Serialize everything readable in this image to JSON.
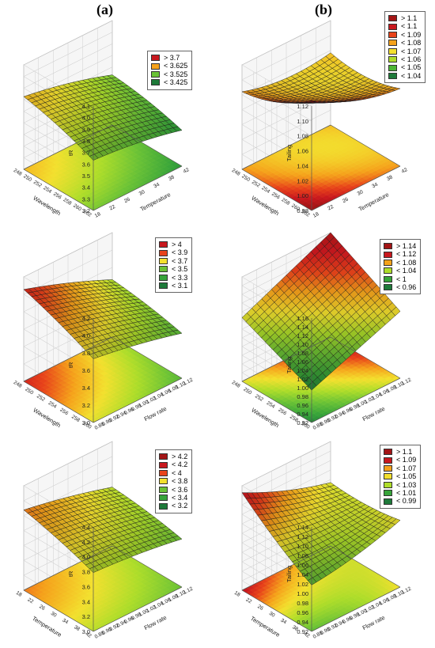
{
  "labels": {
    "col_a": "(a)",
    "col_b": "(b)"
  },
  "chart_data": [
    {
      "id": "a1",
      "type": "surface3d",
      "zlabel": "tR",
      "xlabel": "Temperature",
      "ylabel": "Wavelength",
      "z_ticks": [
        "3.2",
        "3.3",
        "3.4",
        "3.5",
        "3.6",
        "3.7",
        "3.8",
        "3.9",
        "4.0",
        "4.1"
      ],
      "z_range": [
        3.2,
        4.1
      ],
      "x_ticks": [
        "18",
        "22",
        "26",
        "30",
        "34",
        "38",
        "42"
      ],
      "y_ticks": [
        "248",
        "250",
        "252",
        "254",
        "256",
        "258",
        "260",
        "262"
      ],
      "corner_z": {
        "x0y0": 3.45,
        "x1y0": 3.28,
        "x0y1": 3.72,
        "x1y1": 3.45
      },
      "curvature": 0.03,
      "legend": [
        {
          "label": "> 3.7",
          "color": "#c8181e"
        },
        {
          "label": "< 3.625",
          "color": "#f5a21b"
        },
        {
          "label": "< 3.525",
          "color": "#6ac236"
        },
        {
          "label": "< 3.425",
          "color": "#1e7a3a"
        }
      ]
    },
    {
      "id": "b1",
      "type": "surface3d",
      "zlabel": "Tailing",
      "xlabel": "Temperature",
      "ylabel": "Wavelength",
      "z_ticks": [
        "0.98",
        "1.00",
        "1.02",
        "1.04",
        "1.06",
        "1.08",
        "1.10",
        "1.12"
      ],
      "z_range": [
        0.98,
        1.12
      ],
      "x_ticks": [
        "18",
        "22",
        "26",
        "30",
        "34",
        "38",
        "42"
      ],
      "y_ticks": [
        "248",
        "250",
        "252",
        "254",
        "256",
        "258",
        "260",
        "262"
      ],
      "corner_z": {
        "x0y0": 1.13,
        "x1y0": 1.07,
        "x0y1": 1.07,
        "x1y1": 1.06
      },
      "curvature": -0.08,
      "legend": [
        {
          "label": "> 1.1",
          "color": "#a31516"
        },
        {
          "label": "< 1.1",
          "color": "#c8181e"
        },
        {
          "label": "< 1.09",
          "color": "#e8431a"
        },
        {
          "label": "< 1.08",
          "color": "#f5a21b"
        },
        {
          "label": "< 1.07",
          "color": "#f3e02e"
        },
        {
          "label": "< 1.06",
          "color": "#aedd2a"
        },
        {
          "label": "< 1.05",
          "color": "#4cb534"
        },
        {
          "label": "< 1.04",
          "color": "#1e7a3a"
        }
      ]
    },
    {
      "id": "a2",
      "type": "surface3d",
      "zlabel": "tR",
      "xlabel": "Flow rate",
      "ylabel": "Wavelength",
      "z_ticks": [
        "3.0",
        "3.2",
        "3.4",
        "3.6",
        "3.8",
        "4.0",
        "4.2"
      ],
      "z_range": [
        3.0,
        4.2
      ],
      "x_ticks": [
        "0.88",
        "0.90",
        "0.92",
        "0.94",
        "0.96",
        "0.98",
        "1.00",
        "1.02",
        "1.04",
        "1.06",
        "1.08",
        "1.10",
        "1.12"
      ],
      "y_ticks": [
        "248",
        "250",
        "252",
        "254",
        "256",
        "258",
        "260"
      ],
      "corner_z": {
        "x0y0": 3.55,
        "x1y0": 3.25,
        "x0y1": 4.0,
        "x1y1": 3.45
      },
      "curvature": 0.02,
      "legend": [
        {
          "label": "> 4",
          "color": "#c8181e"
        },
        {
          "label": "< 3.9",
          "color": "#e8431a"
        },
        {
          "label": "< 3.7",
          "color": "#f3e02e"
        },
        {
          "label": "< 3.5",
          "color": "#6ac236"
        },
        {
          "label": "< 3.3",
          "color": "#37a43a"
        },
        {
          "label": "< 3.1",
          "color": "#1e7a3a"
        }
      ]
    },
    {
      "id": "b2",
      "type": "surface3d",
      "zlabel": "Tailing",
      "xlabel": "Flow rate",
      "ylabel": "Wavelength",
      "z_ticks": [
        "0.92",
        "0.94",
        "0.96",
        "0.98",
        "1.00",
        "1.02",
        "1.04",
        "1.06",
        "1.08",
        "1.10",
        "1.12",
        "1.14",
        "1.16"
      ],
      "z_range": [
        0.92,
        1.16
      ],
      "x_ticks": [
        "0.88",
        "0.90",
        "0.92",
        "0.94",
        "0.96",
        "0.98",
        "1.00",
        "1.02",
        "1.04",
        "1.06",
        "1.08",
        "1.10",
        "1.12"
      ],
      "y_ticks": [
        "248",
        "250",
        "252",
        "254",
        "256",
        "258",
        "260"
      ],
      "corner_z": {
        "x0y0": 0.93,
        "x1y0": 1.04,
        "x0y1": 1.03,
        "x1y1": 1.16
      },
      "curvature": 0.0,
      "legend": [
        {
          "label": "> 1.14",
          "color": "#a31516"
        },
        {
          "label": "< 1.12",
          "color": "#c8181e"
        },
        {
          "label": "< 1.08",
          "color": "#f5a21b"
        },
        {
          "label": "< 1.04",
          "color": "#aedd2a"
        },
        {
          "label": "< 1",
          "color": "#37a43a"
        },
        {
          "label": "< 0.96",
          "color": "#1e7a3a"
        }
      ]
    },
    {
      "id": "a3",
      "type": "surface3d",
      "zlabel": "tR",
      "xlabel": "Flow rate",
      "ylabel": "Temperature",
      "z_ticks": [
        "3.0",
        "3.2",
        "3.4",
        "3.6",
        "3.8",
        "4.0",
        "4.2",
        "4.4"
      ],
      "z_range": [
        3.0,
        4.4
      ],
      "x_ticks": [
        "0.88",
        "0.90",
        "0.92",
        "0.94",
        "0.96",
        "0.98",
        "1.00",
        "1.02",
        "1.04",
        "1.06",
        "1.08",
        "1.10",
        "1.12"
      ],
      "y_ticks": [
        "18",
        "22",
        "26",
        "30",
        "34",
        "38",
        "42"
      ],
      "corner_z": {
        "x0y0": 3.55,
        "x1y0": 3.35,
        "x0y1": 3.95,
        "x1y1": 3.55
      },
      "curvature": 0.02,
      "legend": [
        {
          "label": "> 4.2",
          "color": "#a31516"
        },
        {
          "label": "< 4.2",
          "color": "#c8181e"
        },
        {
          "label": "< 4",
          "color": "#e8431a"
        },
        {
          "label": "< 3.8",
          "color": "#f3e02e"
        },
        {
          "label": "< 3.6",
          "color": "#6ac236"
        },
        {
          "label": "< 3.4",
          "color": "#37a43a"
        },
        {
          "label": "< 3.2",
          "color": "#1e7a3a"
        }
      ]
    },
    {
      "id": "b3",
      "type": "surface3d",
      "zlabel": "Tailing",
      "xlabel": "Flow rate",
      "ylabel": "Temperature",
      "z_ticks": [
        "0.92",
        "0.94",
        "0.96",
        "0.98",
        "1.00",
        "1.02",
        "1.04",
        "1.06",
        "1.08",
        "1.10",
        "1.12",
        "1.14"
      ],
      "z_range": [
        0.92,
        1.14
      ],
      "x_ticks": [
        "0.88",
        "0.90",
        "0.92",
        "0.94",
        "0.96",
        "0.98",
        "1.00",
        "1.02",
        "1.04",
        "1.06",
        "1.08",
        "1.10",
        "1.12"
      ],
      "y_ticks": [
        "18",
        "22",
        "26",
        "30",
        "34",
        "38",
        "42"
      ],
      "corner_z": {
        "x0y0": 0.97,
        "x1y0": 1.03,
        "x0y1": 1.12,
        "x1y1": 1.02
      },
      "curvature": -0.04,
      "legend": [
        {
          "label": "> 1.1",
          "color": "#a31516"
        },
        {
          "label": "< 1.09",
          "color": "#c8181e"
        },
        {
          "label": "< 1.07",
          "color": "#f5a21b"
        },
        {
          "label": "< 1.05",
          "color": "#f3e02e"
        },
        {
          "label": "< 1.03",
          "color": "#aedd2a"
        },
        {
          "label": "< 1.01",
          "color": "#37a43a"
        },
        {
          "label": "< 0.99",
          "color": "#1e7a3a"
        }
      ]
    }
  ]
}
